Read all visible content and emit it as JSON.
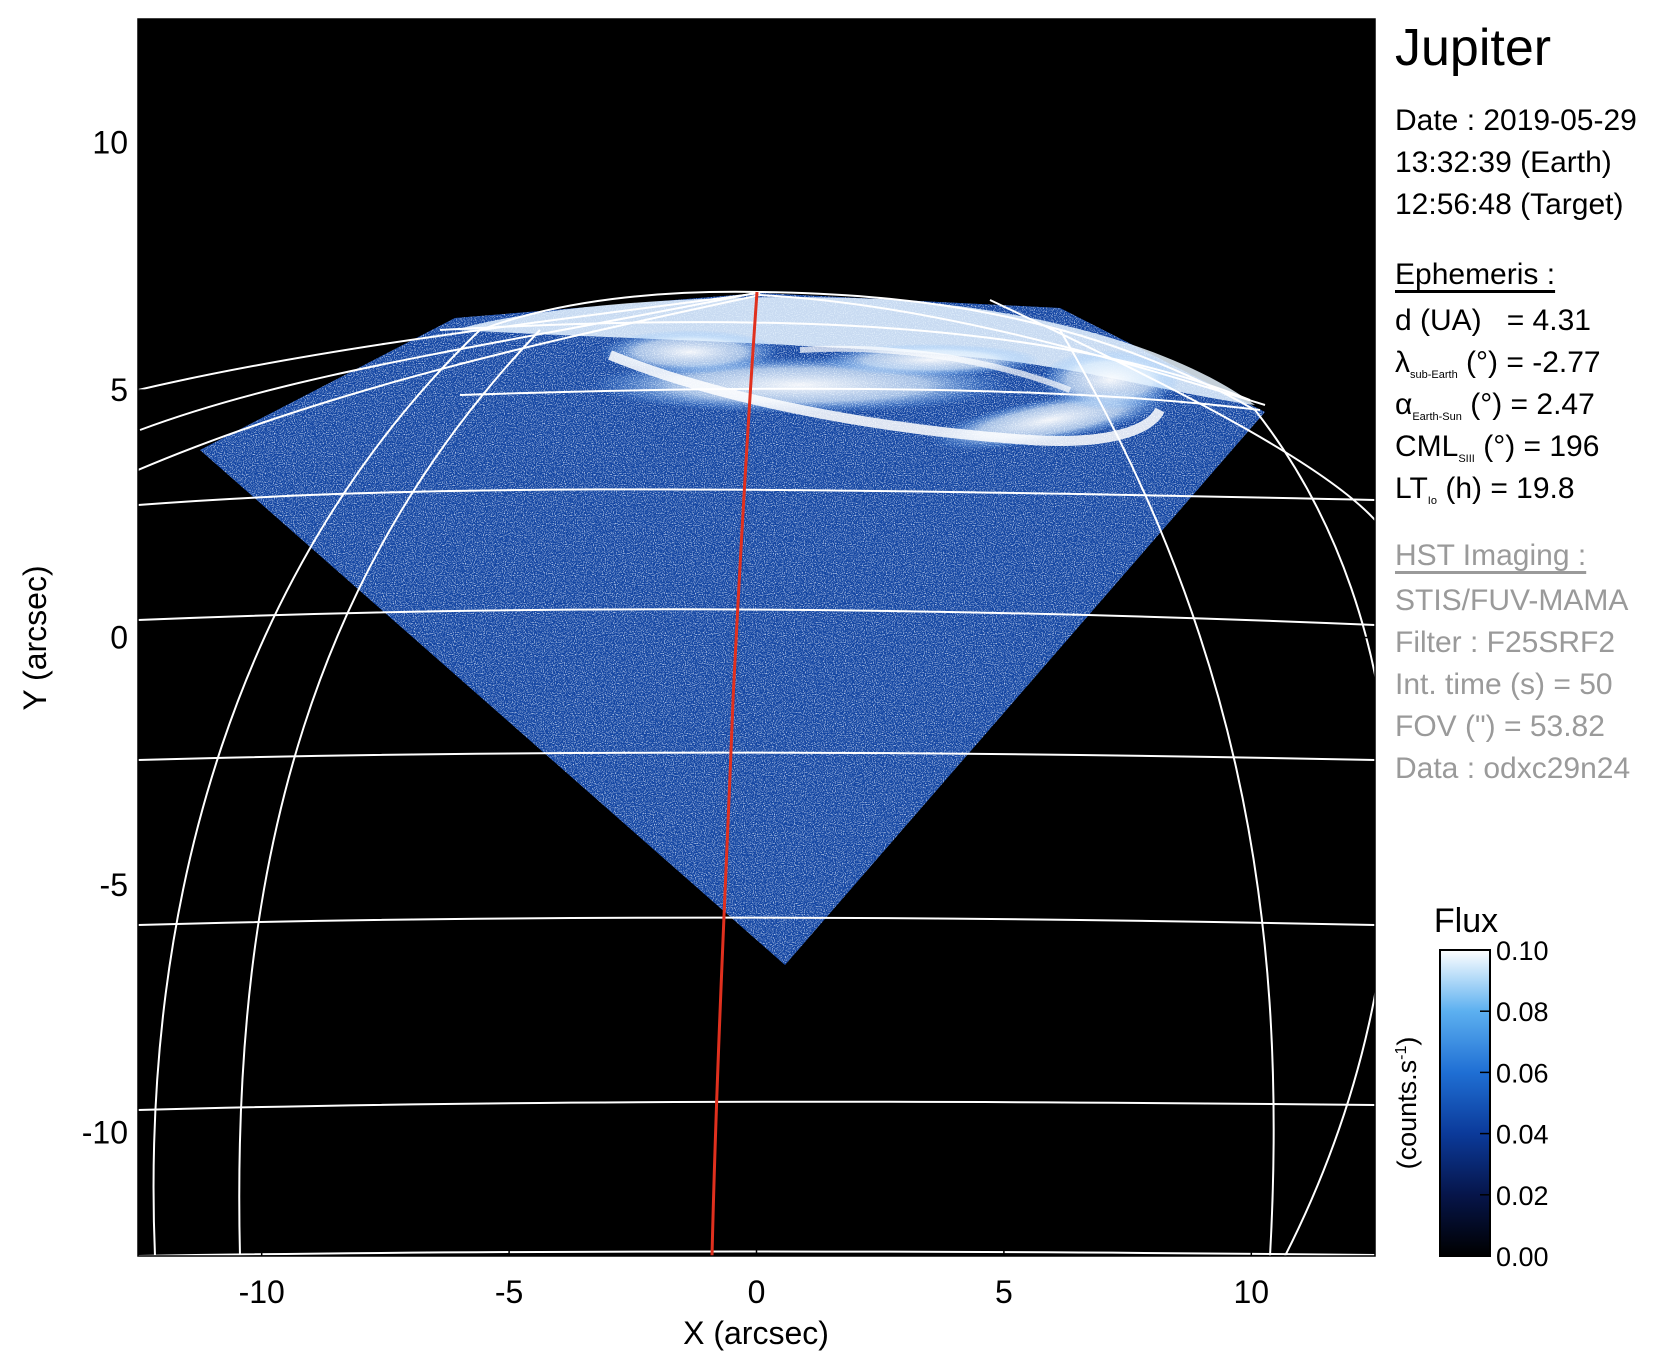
{
  "title": "Jupiter",
  "date": {
    "line1": "Date : 2019-05-29",
    "line2": "13:32:39 (Earth)",
    "line3": "12:56:48 (Target)"
  },
  "ephemeris": {
    "header": "Ephemeris :",
    "d_label": "d (UA)",
    "d_value": "= 4.31",
    "lambda_sym": "λ",
    "lambda_sub": "sub-Earth",
    "lambda_value": "(°) = -2.77",
    "alpha_sym": "α",
    "alpha_sub": "Earth-Sun",
    "alpha_value": "(°) = 2.47",
    "cml_sym": "CML",
    "cml_sub": "SIII",
    "cml_value": "(°) = 196",
    "lt_sym": "LT",
    "lt_sub": "Io",
    "lt_value": "(h) = 19.8"
  },
  "hst": {
    "header": "HST Imaging :",
    "instrument": "STIS/FUV-MAMA",
    "filter": "Filter : F25SRF2",
    "int_time": "Int. time (s) = 50",
    "fov": "FOV (\") = 53.82",
    "data": "Data : odxc29n24"
  },
  "axes": {
    "xlabel": "X (arcsec)",
    "ylabel": "Y (arcsec)",
    "xticks": [
      "-10",
      "-5",
      "0",
      "5",
      "10"
    ],
    "yticks": [
      "10",
      "5",
      "0",
      "-5",
      "-10"
    ],
    "xtick_values": [
      -10,
      -5,
      0,
      5,
      10
    ],
    "ytick_values": [
      10,
      5,
      0,
      -5,
      -10
    ],
    "xlim": [
      -12.5,
      12.5
    ],
    "ylim": [
      -12.5,
      12.5
    ]
  },
  "colorbar": {
    "title": "Flux",
    "unit": "(counts.s",
    "unit_sup": "-1",
    "unit_close": ")",
    "ticks": [
      "0.10",
      "0.08",
      "0.06",
      "0.04",
      "0.02",
      "0.00"
    ],
    "tick_values": [
      0.1,
      0.08,
      0.06,
      0.04,
      0.02,
      0.0
    ],
    "range": [
      0.0,
      0.1
    ],
    "colors": [
      "#000000",
      "#06154a",
      "#0b3a9a",
      "#1f6fd4",
      "#5cb0f0",
      "#ffffff"
    ]
  },
  "colors": {
    "grid": "#ffffff",
    "meridian": "#e0301e",
    "background": "#000000"
  }
}
